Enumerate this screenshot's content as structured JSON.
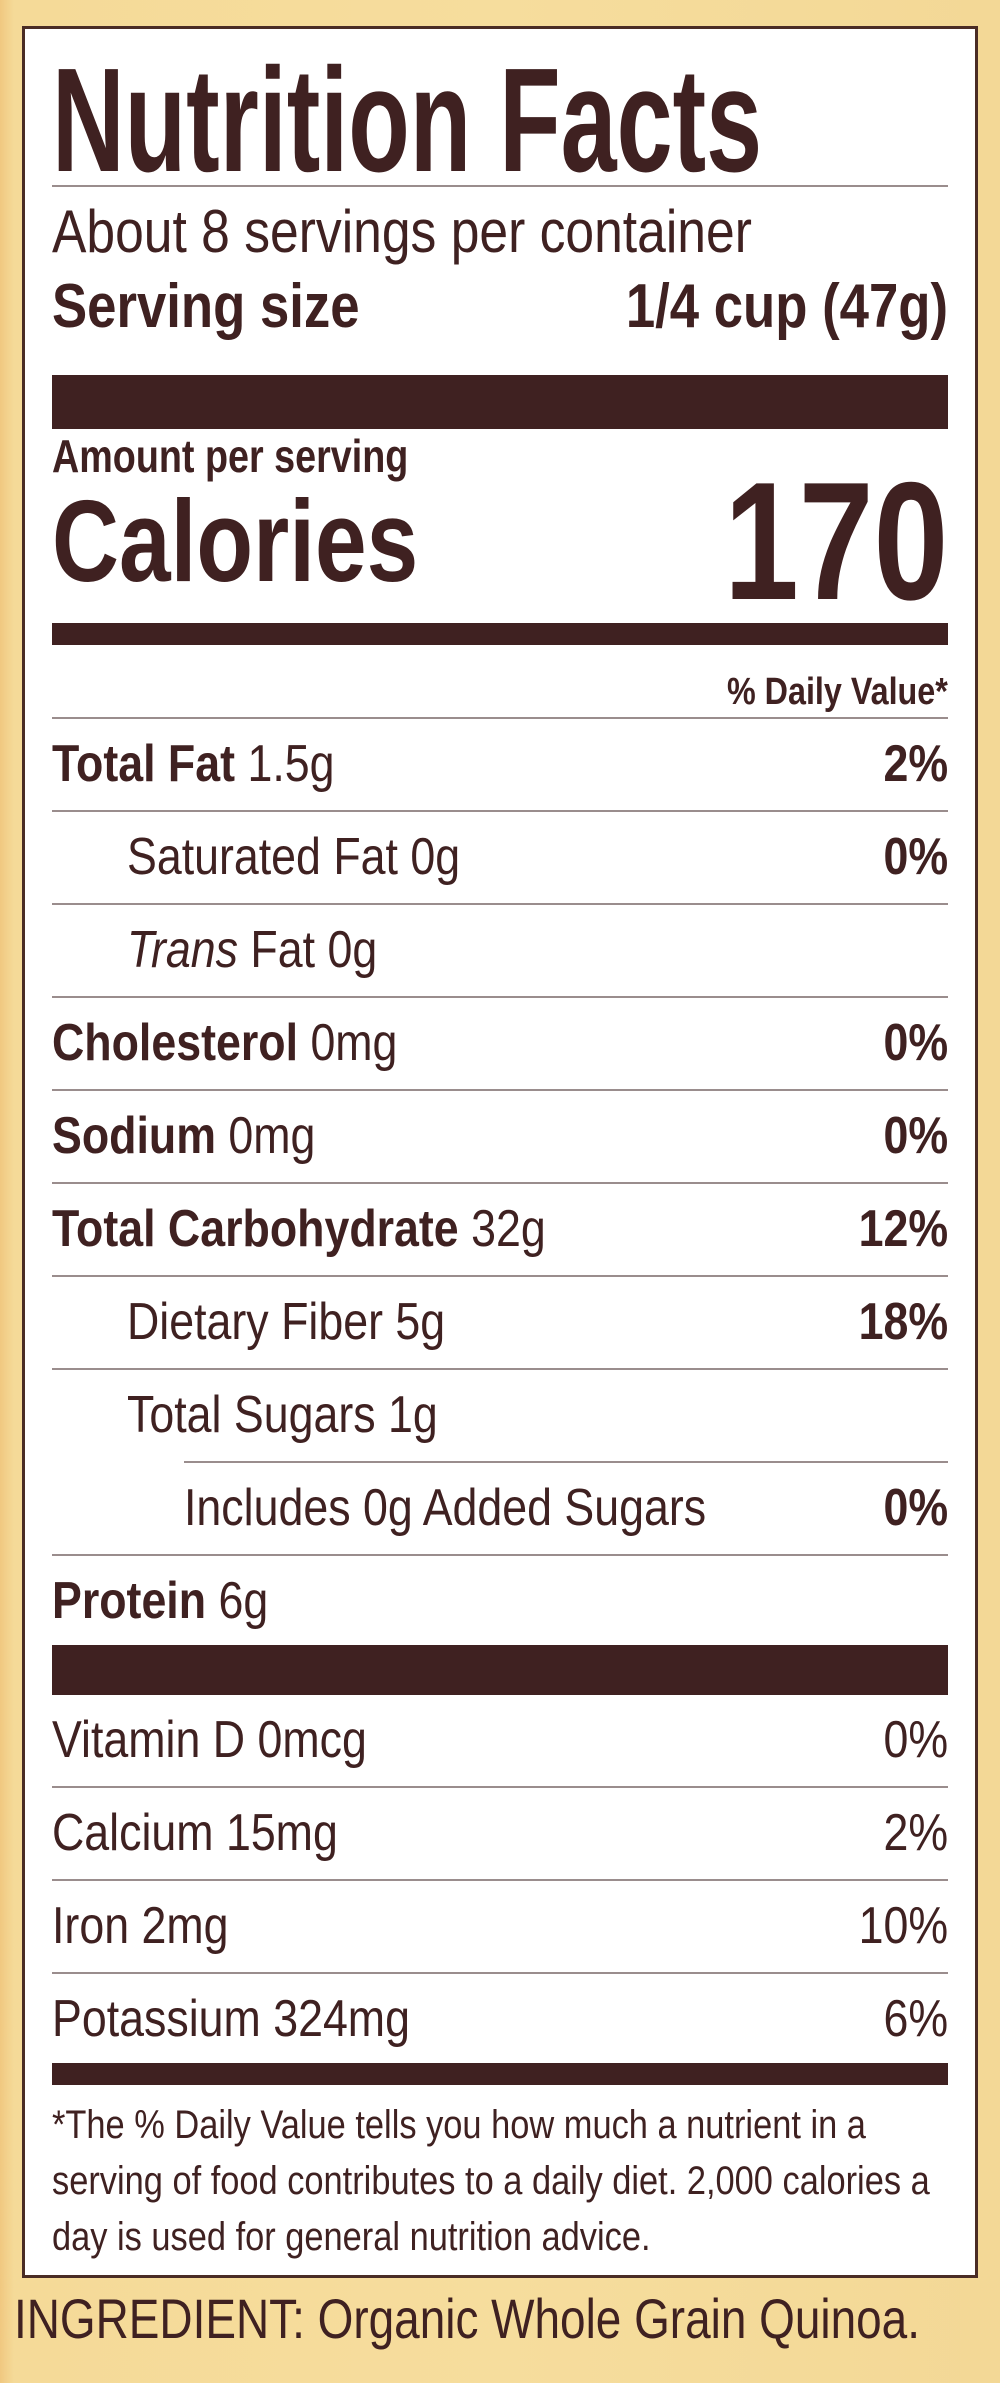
{
  "label": {
    "title": "Nutrition Facts",
    "servings_per_container": "About 8 servings per container",
    "serving_size_label": "Serving size",
    "serving_size_value": "1/4 cup (47g)",
    "amount_per_serving": "Amount per serving",
    "calories_label": "Calories",
    "calories_value": "170",
    "daily_value_header": "% Daily Value*",
    "nutrients": [
      {
        "name": "Total Fat",
        "amount": " 1.5g",
        "dv": "2%"
      },
      {
        "name": "Saturated Fat 0g",
        "dv": "0%"
      },
      {
        "name_italic": "Trans",
        "name": " Fat 0g"
      },
      {
        "name": "Cholesterol",
        "amount": " 0mg",
        "dv": "0%"
      },
      {
        "name": "Sodium",
        "amount": " 0mg",
        "dv": "0%"
      },
      {
        "name": "Total Carbohydrate",
        "amount": " 32g",
        "dv": "12%"
      },
      {
        "name": "Dietary Fiber 5g",
        "dv": "18%"
      },
      {
        "name": "Total Sugars 1g"
      },
      {
        "name": "Includes 0g Added Sugars",
        "dv": "0%"
      },
      {
        "name": "Protein",
        "amount": " 6g"
      }
    ],
    "vitamins": [
      {
        "name": "Vitamin D 0mcg",
        "dv": "0%"
      },
      {
        "name": "Calcium 15mg",
        "dv": "2%"
      },
      {
        "name": "Iron 2mg",
        "dv": "10%"
      },
      {
        "name": "Potassium 324mg",
        "dv": "6%"
      }
    ],
    "footnote": "*The % Daily Value tells you how much a nutrient in a serving of food contributes to a daily diet. 2,000 calories a day is used for general nutrition advice."
  },
  "ingredients": "INGREDIENT: Organic Whole Grain Quinoa.",
  "colors": {
    "text": "#3f2121",
    "background": "#f6dd9d",
    "panel": "#ffffff"
  }
}
